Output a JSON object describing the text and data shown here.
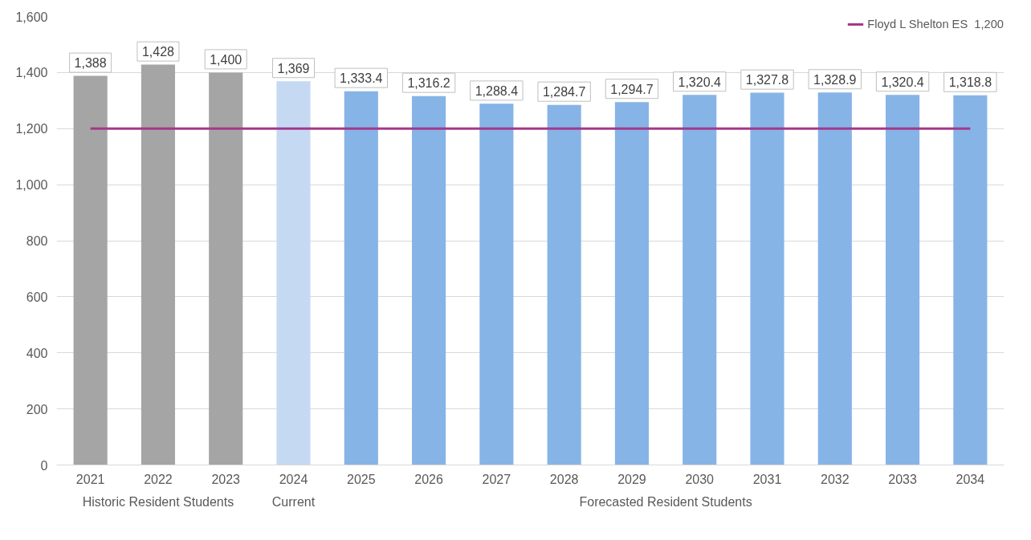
{
  "chart_data": {
    "type": "bar",
    "categories": [
      "2021",
      "2022",
      "2023",
      "2024",
      "2025",
      "2026",
      "2027",
      "2028",
      "2029",
      "2030",
      "2031",
      "2032",
      "2033",
      "2034"
    ],
    "values": [
      1388,
      1428,
      1400,
      1369,
      1333.4,
      1316.2,
      1288.4,
      1284.7,
      1294.7,
      1320.4,
      1327.8,
      1328.9,
      1320.4,
      1318.8
    ],
    "value_labels": [
      "1,388",
      "1,428",
      "1,400",
      "1,369",
      "1,333.4",
      "1,316.2",
      "1,288.4",
      "1,284.7",
      "1,294.7",
      "1,320.4",
      "1,327.8",
      "1,328.9",
      "1,320.4",
      "1,318.8"
    ],
    "colors": [
      "#a5a5a5",
      "#a5a5a5",
      "#a5a5a5",
      "#c5daf2",
      "#86b4e6",
      "#86b4e6",
      "#86b4e6",
      "#86b4e6",
      "#86b4e6",
      "#86b4e6",
      "#86b4e6",
      "#86b4e6",
      "#86b4e6",
      "#86b4e6"
    ],
    "annotations": [
      "Historic Resident Students",
      "Current",
      "Forecasted Resident Students"
    ],
    "ref_lines": [
      {
        "axis": "y",
        "value": 1200,
        "label": "Floyd L Shelton ES  1,200",
        "color": "#a4388c"
      }
    ],
    "ylim": [
      0,
      1600
    ],
    "yticks": [
      0,
      {
        "value": 200,
        "label": "200"
      },
      400,
      600,
      800,
      {
        "value": 1000,
        "label": "1,000"
      },
      {
        "value": 1200,
        "label": "1,200"
      },
      {
        "value": 1400,
        "label": "1,400"
      },
      {
        "value": 1600,
        "label": "1,600"
      }
    ],
    "grid": "y",
    "legend": "top right"
  }
}
